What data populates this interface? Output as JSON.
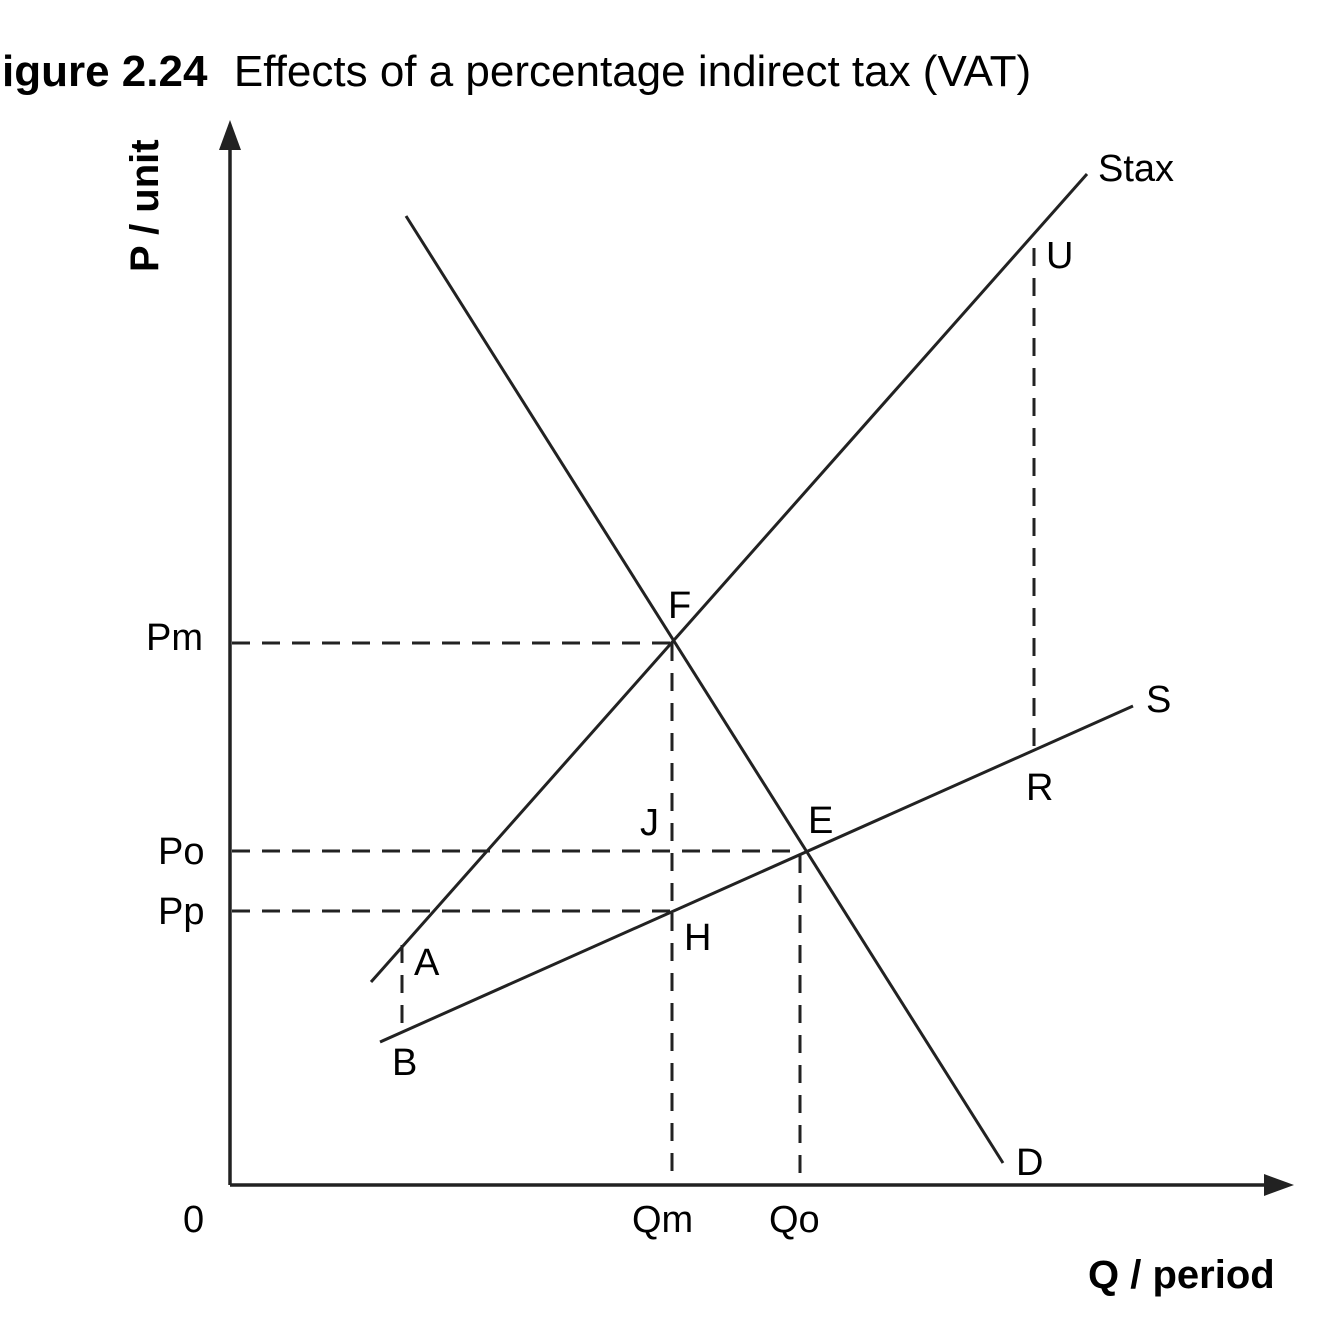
{
  "figure": {
    "title_number": "igure 2.24",
    "title_text": "Effects of a percentage indirect tax (VAT)"
  },
  "axes": {
    "y_title": "P / unit",
    "x_title": "Q / period",
    "origin": "0"
  },
  "price_labels": {
    "pm": "Pm",
    "po": "Po",
    "pp": "Pp"
  },
  "quantity_labels": {
    "qm": "Qm",
    "qo": "Qo"
  },
  "curve_labels": {
    "stax": "Stax",
    "s": "S",
    "d": "D"
  },
  "point_labels": {
    "u": "U",
    "f": "F",
    "r": "R",
    "j": "J",
    "e": "E",
    "h": "H",
    "a": "A",
    "b": "B"
  }
}
